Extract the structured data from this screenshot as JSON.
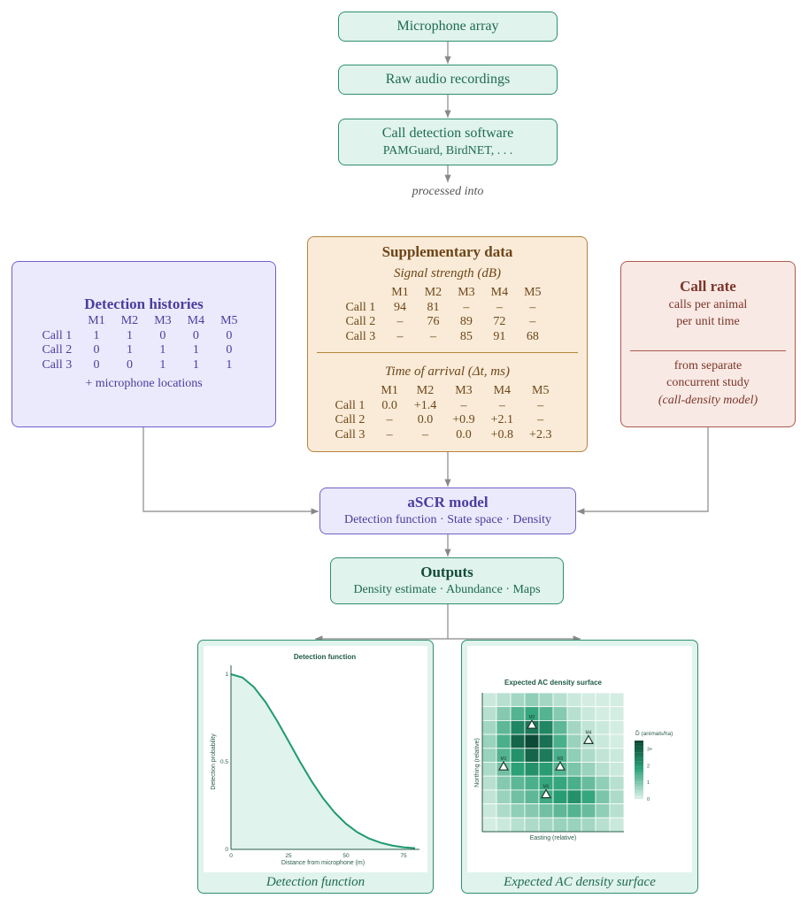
{
  "pipeline": {
    "microphone_array": "Microphone array",
    "raw_audio": "Raw audio recordings",
    "call_detection_title": "Call detection software",
    "call_detection_sub": "PAMGuard, BirdNET, . . .",
    "processed_into": "processed into"
  },
  "detection_histories": {
    "title": "Detection histories",
    "columns": [
      "",
      "M1",
      "M2",
      "M3",
      "M4",
      "M5"
    ],
    "rows": [
      [
        "Call 1",
        "1",
        "1",
        "0",
        "0",
        "0"
      ],
      [
        "Call 2",
        "0",
        "1",
        "1",
        "1",
        "0"
      ],
      [
        "Call 3",
        "0",
        "0",
        "1",
        "1",
        "1"
      ]
    ],
    "footer": "+ microphone locations"
  },
  "supplementary": {
    "title": "Supplementary data",
    "signal_title": "Signal strength (dB)",
    "signal_columns": [
      "",
      "M1",
      "M2",
      "M3",
      "M4",
      "M5"
    ],
    "signal_rows": [
      [
        "Call 1",
        "94",
        "81",
        "–",
        "–",
        "–"
      ],
      [
        "Call 2",
        "–",
        "76",
        "89",
        "72",
        "–"
      ],
      [
        "Call 3",
        "–",
        "–",
        "85",
        "91",
        "68"
      ]
    ],
    "toa_title": "Time of arrival (Δt, ms)",
    "toa_columns": [
      "",
      "M1",
      "M2",
      "M3",
      "M4",
      "M5"
    ],
    "toa_rows": [
      [
        "Call 1",
        "0.0",
        "+1.4",
        "–",
        "–",
        "–"
      ],
      [
        "Call 2",
        "–",
        "0.0",
        "+0.9",
        "+2.1",
        "–"
      ],
      [
        "Call 3",
        "–",
        "–",
        "0.0",
        "+0.8",
        "+2.3"
      ]
    ]
  },
  "call_rate": {
    "title": "Call rate",
    "line1": "calls per animal",
    "line2": "per unit time",
    "line3": "from separate",
    "line4": "concurrent study",
    "line5": "(call-density model)"
  },
  "ascr": {
    "title": "aSCR model",
    "sub": "Detection function · State space · Density"
  },
  "outputs": {
    "title": "Outputs",
    "sub": "Density estimate · Abundance · Maps"
  },
  "panels": {
    "left_caption": "Detection function",
    "right_caption": "Expected AC density surface"
  },
  "colors": {
    "green": "#1f8f66",
    "dark_green": "#0b4a37",
    "light": "#e8f6f0"
  },
  "chart_data": [
    {
      "type": "area",
      "title": "Detection function",
      "xlabel": "Distance from microphone (m)",
      "ylabel": "Detection probability",
      "xlim": [
        0,
        80
      ],
      "ylim": [
        0,
        1
      ],
      "xticks": [
        "0",
        "25",
        "50",
        "75"
      ],
      "yticks": [
        "0",
        "0.5",
        "1"
      ],
      "x": [
        0,
        5,
        10,
        15,
        20,
        25,
        30,
        35,
        40,
        45,
        50,
        55,
        60,
        65,
        70,
        75,
        80
      ],
      "y": [
        1.0,
        0.981,
        0.926,
        0.841,
        0.735,
        0.618,
        0.5,
        0.39,
        0.292,
        0.211,
        0.146,
        0.097,
        0.062,
        0.038,
        0.022,
        0.012,
        0.007
      ]
    },
    {
      "type": "heatmap",
      "title": "Expected AC density surface",
      "xlabel": "Easting (relative)",
      "ylabel": "Northing (relative)",
      "legend_title": "D̂ (animals/ha)",
      "legend_ticks": [
        "0",
        "1",
        "2",
        "3+"
      ],
      "value_range": [
        0,
        3.5
      ],
      "grid_rows_top_to_bottom": [
        [
          0.3,
          0.5,
          0.7,
          0.9,
          0.7,
          0.5,
          0.3,
          0.2,
          0.2,
          0.2
        ],
        [
          0.5,
          1.0,
          1.5,
          1.8,
          1.5,
          1.0,
          0.5,
          0.3,
          0.2,
          0.2
        ],
        [
          0.7,
          1.4,
          2.4,
          2.7,
          2.4,
          1.4,
          0.7,
          0.4,
          0.3,
          0.2
        ],
        [
          0.8,
          1.6,
          3.0,
          3.5,
          2.8,
          1.6,
          0.8,
          0.5,
          0.3,
          0.2
        ],
        [
          0.8,
          1.5,
          2.2,
          3.0,
          2.6,
          1.6,
          0.9,
          0.6,
          0.4,
          0.3
        ],
        [
          0.6,
          1.2,
          1.9,
          2.2,
          2.0,
          1.5,
          1.1,
          0.8,
          0.5,
          0.3
        ],
        [
          0.5,
          1.0,
          1.4,
          1.6,
          1.8,
          1.8,
          1.6,
          1.3,
          0.9,
          0.5
        ],
        [
          0.4,
          0.8,
          1.2,
          1.4,
          1.7,
          2.0,
          2.2,
          1.8,
          1.1,
          0.6
        ],
        [
          0.3,
          0.6,
          0.9,
          1.0,
          1.2,
          1.4,
          1.5,
          1.3,
          0.9,
          0.5
        ],
        [
          0.2,
          0.3,
          0.5,
          0.6,
          0.7,
          0.8,
          0.8,
          0.7,
          0.5,
          0.3
        ]
      ],
      "microphones": [
        {
          "label": "M1",
          "easting": 1.5,
          "northing": 4.7
        },
        {
          "label": "M2",
          "easting": 3.5,
          "northing": 7.7
        },
        {
          "label": "M3",
          "easting": 5.5,
          "northing": 4.7
        },
        {
          "label": "M4",
          "easting": 7.5,
          "northing": 6.6
        },
        {
          "label": "M5",
          "easting": 4.5,
          "northing": 2.7
        }
      ]
    }
  ]
}
